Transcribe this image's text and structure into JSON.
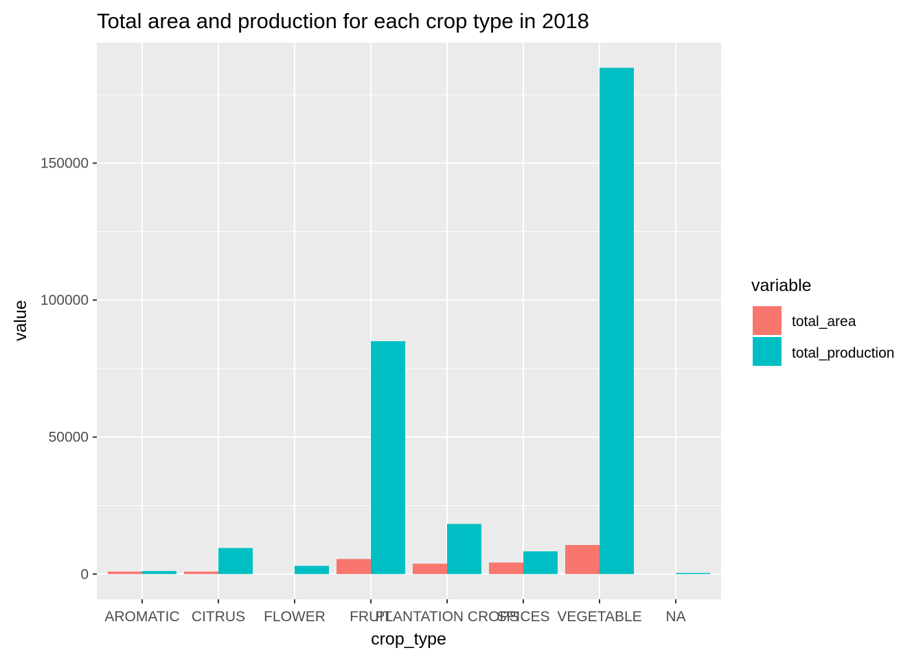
{
  "chart_data": {
    "type": "bar",
    "title": "Total area and production for each crop type in 2018",
    "xlabel": "crop_type",
    "ylabel": "value",
    "categories": [
      "AROMATIC",
      "CITRUS",
      "FLOWER",
      "FRUIT",
      "PLANTATION CROPS",
      "SPICES",
      "VEGETABLE",
      "NA"
    ],
    "series": [
      {
        "name": "total_area",
        "color": "#F8766D",
        "values": [
          900,
          900,
          null,
          5500,
          3800,
          4200,
          10600,
          null
        ]
      },
      {
        "name": "total_production",
        "color": "#00BFC4",
        "values": [
          1100,
          9500,
          3000,
          85000,
          18300,
          8300,
          184800,
          400
        ]
      }
    ],
    "y_ticks": [
      0,
      50000,
      100000,
      150000
    ],
    "y_tick_labels": [
      "0",
      "50000",
      "100000",
      "150000"
    ],
    "ylim": [
      -9200,
      194000
    ],
    "grid": true,
    "legend": {
      "title": "variable",
      "position": "right"
    },
    "panel_color": "#EBEBEB",
    "grid_color": "#FFFFFF"
  }
}
